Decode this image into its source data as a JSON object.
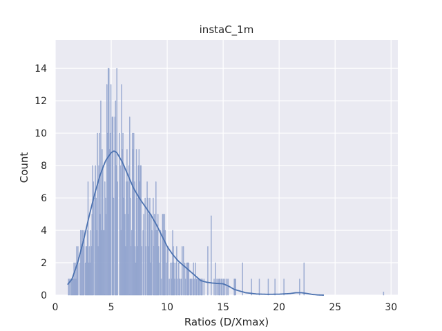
{
  "chart_data": {
    "type": "histogram",
    "title": "instaC_1m",
    "xlabel": "Ratios (D/Xmax)",
    "ylabel": "Count",
    "xlim": [
      0,
      30.6
    ],
    "ylim": [
      0,
      15.75
    ],
    "xticks": [
      0,
      5,
      10,
      15,
      20,
      25,
      30
    ],
    "yticks": [
      0,
      2,
      4,
      6,
      8,
      10,
      12,
      14
    ],
    "grid": true,
    "legend": "none",
    "colors": {
      "background": "#eaeaf2",
      "grid": "#ffffff",
      "bar_fill": "#a4b4d7",
      "bar_edge": "#8196c6",
      "kde_line": "#4c72b0"
    },
    "bins": {
      "start": 1.1,
      "width": 0.06
    },
    "kde_curve": {
      "x": [
        1.1,
        1.5,
        2.0,
        2.5,
        3.0,
        3.5,
        4.0,
        4.5,
        5.0,
        5.25,
        5.5,
        6.0,
        6.5,
        7.0,
        7.5,
        8.0,
        8.5,
        9.0,
        9.5,
        10.0,
        10.5,
        11.0,
        11.5,
        12.0,
        12.5,
        13.0,
        13.5,
        14.0,
        14.5,
        15.0,
        15.5,
        16.0,
        17.0,
        18.0,
        19.0,
        20.0,
        21.0,
        21.5,
        22.0,
        22.5,
        23.0,
        23.5,
        24.0
      ],
      "y": [
        0.65,
        1.0,
        2.0,
        3.3,
        4.8,
        6.2,
        7.4,
        8.3,
        8.8,
        8.9,
        8.8,
        8.2,
        7.4,
        6.6,
        6.0,
        5.5,
        5.0,
        4.4,
        3.7,
        3.0,
        2.5,
        2.1,
        1.8,
        1.5,
        1.2,
        0.9,
        0.8,
        0.75,
        0.72,
        0.7,
        0.55,
        0.35,
        0.15,
        0.07,
        0.05,
        0.06,
        0.1,
        0.15,
        0.15,
        0.1,
        0.04,
        0.01,
        0.0
      ]
    },
    "isolated_bars": [
      {
        "x": 13.9,
        "y": 4.9
      },
      {
        "x": 13.6,
        "y": 3.0
      },
      {
        "x": 14.3,
        "y": 2.0
      },
      {
        "x": 15.3,
        "y": 1.0
      },
      {
        "x": 16.7,
        "y": 2.0
      },
      {
        "x": 16.0,
        "y": 1.0
      },
      {
        "x": 17.5,
        "y": 1.0
      },
      {
        "x": 18.2,
        "y": 1.0
      },
      {
        "x": 19.0,
        "y": 1.0
      },
      {
        "x": 19.6,
        "y": 1.0
      },
      {
        "x": 20.4,
        "y": 1.0
      },
      {
        "x": 21.8,
        "y": 1.0
      },
      {
        "x": 22.2,
        "y": 2.0
      },
      {
        "x": 29.3,
        "y": 0.2
      }
    ]
  }
}
